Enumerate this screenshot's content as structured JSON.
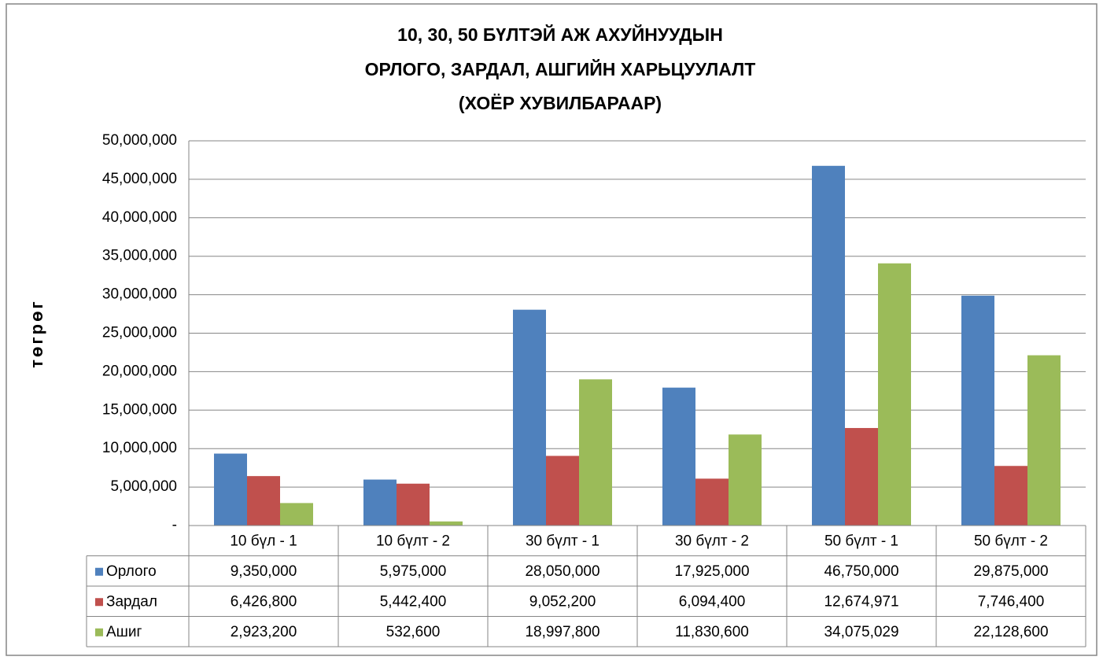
{
  "chart_data": {
    "type": "bar",
    "title": [
      "10, 30, 50 БҮЛТЭЙ АЖ АХУЙНУУДЫН",
      "ОРЛОГО, ЗАРДАЛ, АШГИЙН ХАРЬЦУУЛАЛТ",
      "(ХОЁР ХУВИЛБАРААР)"
    ],
    "y_label": "төгрөг",
    "categories": [
      "10 бүл - 1",
      "10 бүлт - 2",
      "30 бүлт - 1",
      "30 бүлт - 2",
      "50 бүлт - 1",
      "50 бүлт - 2"
    ],
    "series": [
      {
        "name": "Орлого",
        "color": "#4f81bd",
        "values": [
          9350000,
          5975000,
          28050000,
          17925000,
          46750000,
          29875000
        ],
        "value_labels": [
          "9,350,000",
          "5,975,000",
          "28,050,000",
          "17,925,000",
          "46,750,000",
          "29,875,000"
        ]
      },
      {
        "name": "Зардал",
        "color": "#c0504d",
        "values": [
          6426800,
          5442400,
          9052200,
          6094400,
          12674971,
          7746400
        ],
        "value_labels": [
          "6,426,800",
          "5,442,400",
          "9,052,200",
          "6,094,400",
          "12,674,971",
          "7,746,400"
        ]
      },
      {
        "name": "Ашиг",
        "color": "#9bbb59",
        "values": [
          2923200,
          532600,
          18997800,
          11830600,
          34075029,
          22128600
        ],
        "value_labels": [
          "2,923,200",
          "532,600",
          "18,997,800",
          "11,830,600",
          "34,075,029",
          "22,128,600"
        ]
      }
    ],
    "ylim": [
      0,
      50000000
    ],
    "yticks": [
      {
        "value": 0,
        "label": "-"
      },
      {
        "value": 5000000,
        "label": "5,000,000"
      },
      {
        "value": 10000000,
        "label": "10,000,000"
      },
      {
        "value": 15000000,
        "label": "15,000,000"
      },
      {
        "value": 20000000,
        "label": "20,000,000"
      },
      {
        "value": 25000000,
        "label": "25,000,000"
      },
      {
        "value": 30000000,
        "label": "30,000,000"
      },
      {
        "value": 35000000,
        "label": "35,000,000"
      },
      {
        "value": 40000000,
        "label": "40,000,000"
      },
      {
        "value": 45000000,
        "label": "45,000,000"
      },
      {
        "value": 50000000,
        "label": "50,000,000"
      }
    ],
    "grid": true,
    "data_table": true
  }
}
